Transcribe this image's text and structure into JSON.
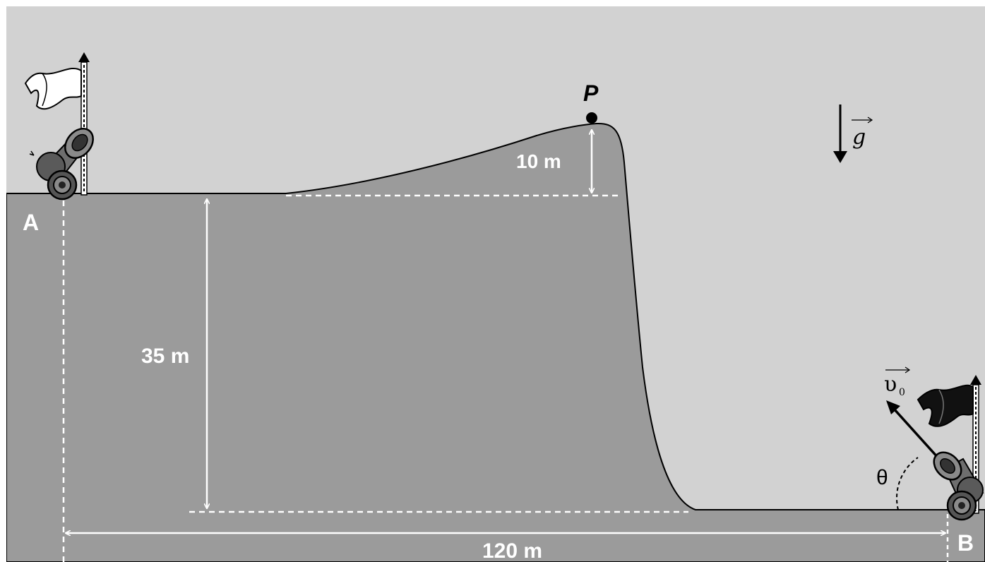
{
  "labels": {
    "point_a": "A",
    "point_b": "B",
    "point_p": "P",
    "height_hill": "10 m",
    "height_cliff": "35 m",
    "distance": "120 m",
    "gravity_symbol": "g",
    "velocity_symbol": "υ",
    "velocity_subscript": "0",
    "angle_symbol": "θ"
  },
  "colors": {
    "sky": "#d2d2d2",
    "ground": "#9b9b9b",
    "outline": "#000000",
    "dimension": "#ffffff",
    "flag_a": "#ffffff",
    "flag_b": "#111111",
    "cannon": "#6e6e6e"
  },
  "icons": {
    "cannon_a": "cannon-icon",
    "cannon_b": "cannon-icon",
    "flag_a": "white-flag-icon",
    "flag_b": "black-flag-icon"
  }
}
